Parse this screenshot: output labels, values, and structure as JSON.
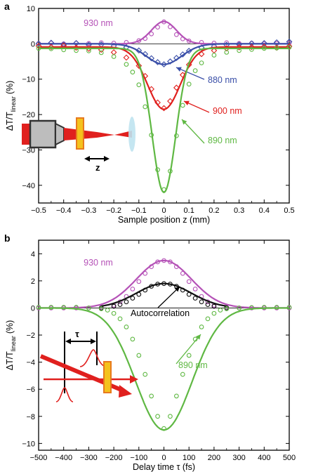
{
  "chart_data": [
    {
      "panel_label": "a",
      "type": "scatter",
      "xlabel": "Sample position z (mm)",
      "ylabel": "ΔT/T",
      "ylabel_sub": "linear",
      "ylabel_unit": "(%)",
      "xlim": [
        -0.5,
        0.5
      ],
      "ylim": [
        -45,
        10
      ],
      "xticks": [
        "-0.5",
        "-0.4",
        "-0.3",
        "-0.2",
        "-0.1",
        "0",
        "0.1",
        "0.2",
        "0.3",
        "0.4",
        "0.5"
      ],
      "yticks": [
        "10",
        "0",
        "-10",
        "-20",
        "-30",
        "-40"
      ],
      "inset_label": "z",
      "series": [
        {
          "name": "930 nm",
          "color": "#b552b7",
          "marker": "circle",
          "fit": {
            "amp": 6.3,
            "w": 0.05
          },
          "x": [
            -0.5,
            -0.45,
            -0.4,
            -0.35,
            -0.3,
            -0.25,
            -0.2,
            -0.15,
            -0.1,
            -0.075,
            -0.05,
            -0.025,
            0,
            0.025,
            0.05,
            0.075,
            0.1,
            0.15,
            0.2,
            0.25,
            0.3,
            0.35,
            0.4,
            0.45,
            0.5
          ],
          "y": [
            0.1,
            0.2,
            0.0,
            0.2,
            0.1,
            0.3,
            0.2,
            0.4,
            0.9,
            1.5,
            2.8,
            4.7,
            6.2,
            4.8,
            2.6,
            1.4,
            0.8,
            0.4,
            0.2,
            0.3,
            0.1,
            0.2,
            0.0,
            0.1,
            0.2
          ]
        },
        {
          "name": "880 nm",
          "color": "#3a4fa8",
          "marker": "diamond",
          "fit": {
            "amp": -5.8,
            "w": 0.07
          },
          "x": [
            -0.5,
            -0.45,
            -0.4,
            -0.35,
            -0.3,
            -0.25,
            -0.2,
            -0.15,
            -0.1,
            -0.075,
            -0.05,
            -0.025,
            0,
            0.025,
            0.05,
            0.075,
            0.1,
            0.15,
            0.2,
            0.25,
            0.3,
            0.35,
            0.4,
            0.45,
            0.5
          ],
          "y": [
            0.0,
            0.3,
            -0.2,
            0.2,
            -0.3,
            -0.2,
            -0.6,
            -1.0,
            -1.9,
            -2.9,
            -4.1,
            -5.2,
            -5.8,
            -5.0,
            -4.0,
            -3.0,
            -2.0,
            -1.1,
            -0.7,
            -0.3,
            -0.2,
            0.1,
            0.2,
            0.4,
            0.6
          ]
        },
        {
          "name": "900 nm",
          "color": "#e0201e",
          "marker": "diamond",
          "fit": {
            "amp": -18.5,
            "w": 0.065
          },
          "x": [
            -0.5,
            -0.45,
            -0.4,
            -0.35,
            -0.3,
            -0.25,
            -0.2,
            -0.15,
            -0.1,
            -0.075,
            -0.05,
            -0.025,
            0,
            0.025,
            0.05,
            0.075,
            0.1,
            0.15,
            0.2,
            0.25,
            0.3,
            0.35,
            0.4,
            0.45,
            0.5
          ],
          "y": [
            -0.6,
            -0.9,
            -0.5,
            -1.1,
            -1.4,
            -1.7,
            -2.4,
            -3.9,
            -6.2,
            -9.1,
            -12.8,
            -16.6,
            -18.2,
            -16.2,
            -12.4,
            -8.8,
            -5.9,
            -2.9,
            -1.9,
            -1.3,
            -1.0,
            -0.9,
            -0.8,
            -1.1,
            -0.7
          ]
        },
        {
          "name": "890 nm",
          "color": "#5fb843",
          "marker": "circle",
          "fit": {
            "amp": -42,
            "w": 0.047
          },
          "x": [
            -0.5,
            -0.45,
            -0.4,
            -0.35,
            -0.3,
            -0.25,
            -0.2,
            -0.15,
            -0.125,
            -0.1,
            -0.075,
            -0.05,
            -0.025,
            0,
            0.025,
            0.05,
            0.075,
            0.1,
            0.125,
            0.15,
            0.2,
            0.25,
            0.3,
            0.35,
            0.4,
            0.45,
            0.5
          ],
          "y": [
            -1.3,
            -1.4,
            -1.7,
            -1.9,
            -2.0,
            -2.5,
            -3.6,
            -5.8,
            -8.0,
            -11.6,
            -17.8,
            -25.8,
            -35.6,
            -41.2,
            -36.0,
            -26.0,
            -17.4,
            -11.4,
            -7.6,
            -5.4,
            -3.2,
            -2.4,
            -1.9,
            -1.6,
            -1.3,
            -1.2,
            -1.0
          ]
        }
      ]
    },
    {
      "panel_label": "b",
      "type": "scatter",
      "xlabel": "Delay time τ (fs)",
      "ylabel": "ΔT/T",
      "ylabel_sub": "linear",
      "ylabel_unit": "(%)",
      "xlim": [
        -500,
        500
      ],
      "ylim": [
        -10.5,
        5
      ],
      "xticks": [
        "-500",
        "-400",
        "-300",
        "-200",
        "-100",
        "0",
        "100",
        "200",
        "300",
        "400",
        "500"
      ],
      "yticks": [
        "4",
        "2",
        "0",
        "-2",
        "-4",
        "-6",
        "-8",
        "-10"
      ],
      "inset_label": "τ",
      "series": [
        {
          "name": "930 nm",
          "color": "#b552b7",
          "marker": "circle",
          "fit": {
            "amp": 3.5,
            "w": 110
          },
          "x": [
            -500,
            -450,
            -400,
            -350,
            -300,
            -250,
            -200,
            -175,
            -150,
            -125,
            -100,
            -75,
            -50,
            -25,
            0,
            25,
            50,
            75,
            100,
            125,
            150,
            175,
            200,
            250,
            300,
            350,
            400,
            450,
            500
          ],
          "y": [
            0.0,
            0.0,
            0.0,
            0.0,
            0.0,
            0.02,
            0.2,
            0.45,
            0.85,
            1.4,
            1.95,
            2.55,
            3.05,
            3.4,
            3.5,
            3.4,
            3.05,
            2.55,
            1.95,
            1.4,
            0.85,
            0.45,
            0.2,
            0.03,
            0.0,
            0.0,
            0.0,
            0.0,
            0.0
          ]
        },
        {
          "name": "Autocorrelation",
          "color": "#111111",
          "marker": "circle",
          "fit": {
            "amp": 1.8,
            "w": 110
          },
          "x": [
            -250,
            -200,
            -175,
            -150,
            -125,
            -100,
            -75,
            -50,
            -25,
            0,
            25,
            50,
            75,
            100,
            125,
            150,
            175,
            200,
            250
          ],
          "y": [
            0.0,
            0.12,
            0.25,
            0.45,
            0.72,
            1.0,
            1.32,
            1.6,
            1.76,
            1.8,
            1.76,
            1.6,
            1.32,
            1.0,
            0.72,
            0.45,
            0.25,
            0.12,
            0.01
          ]
        },
        {
          "name": "890 nm",
          "color": "#5fb843",
          "marker": "circle",
          "fit": {
            "amp": -9.0,
            "w": 112
          },
          "x": [
            -500,
            -450,
            -400,
            -350,
            -300,
            -250,
            -225,
            -200,
            -175,
            -150,
            -125,
            -100,
            -75,
            -50,
            -25,
            0,
            25,
            50,
            75,
            100,
            125,
            150,
            175,
            200,
            225,
            250,
            300,
            350,
            400,
            450,
            500
          ],
          "y": [
            0.05,
            0.05,
            0.05,
            0.05,
            0.0,
            -0.06,
            -0.16,
            -0.4,
            -0.8,
            -1.4,
            -2.3,
            -3.5,
            -4.9,
            -6.5,
            -8.0,
            -8.9,
            -8.0,
            -6.5,
            -4.9,
            -3.5,
            -2.3,
            -1.4,
            -0.8,
            -0.4,
            -0.16,
            -0.06,
            0.0,
            0.03,
            0.05,
            0.05,
            0.05
          ]
        }
      ]
    }
  ]
}
